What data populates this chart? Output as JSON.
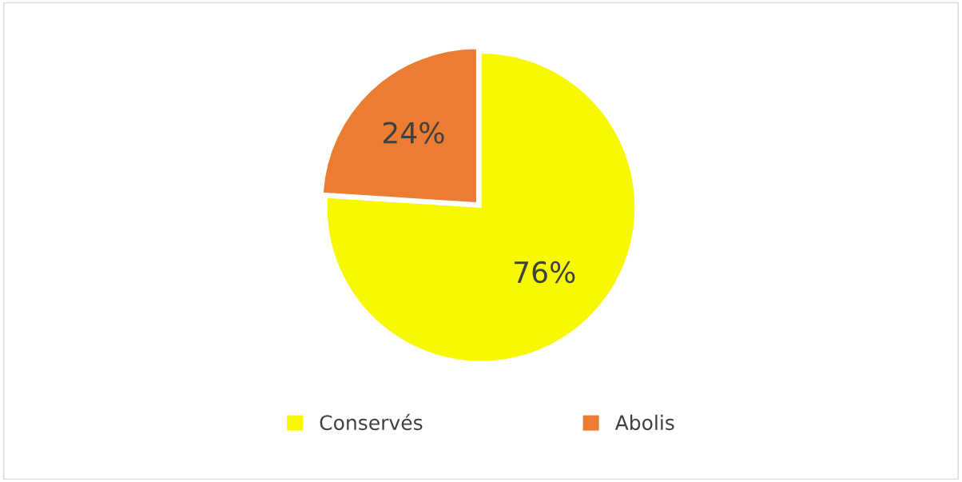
{
  "chart_data": {
    "type": "pie",
    "categories": [
      "Conservés",
      "Abolis"
    ],
    "values": [
      76,
      24
    ],
    "colors": [
      "#f8f800",
      "#ea7d32"
    ],
    "value_labels": [
      "76%",
      "24%"
    ],
    "legend": "bottom"
  }
}
